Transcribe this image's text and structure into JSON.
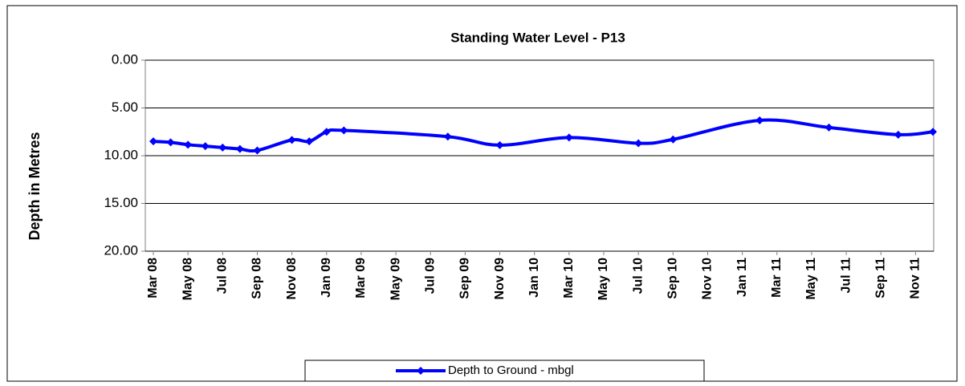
{
  "chart_data": {
    "type": "line",
    "title": "Standing Water Level - P13",
    "y_label": "Depth in Metres",
    "y_inverted": true,
    "grid": true,
    "legend": "bottom",
    "x": [
      "2008-03",
      "2008-04",
      "2008-05",
      "2008-06",
      "2008-07",
      "2008-08",
      "2008-09",
      "2008-11",
      "2008-12",
      "2009-01",
      "2009-02",
      "2009-08",
      "2009-11",
      "2010-03",
      "2010-07",
      "2010-09",
      "2011-02",
      "2011-06",
      "2011-10",
      "2011-12"
    ],
    "series": [
      {
        "name": "Depth to Ground - mbgl",
        "color": "#0000ff",
        "values": [
          8.5,
          8.6,
          8.85,
          9.0,
          9.15,
          9.3,
          9.45,
          8.35,
          8.5,
          7.5,
          7.35,
          8.0,
          8.9,
          8.1,
          8.7,
          8.3,
          6.3,
          7.05,
          7.8,
          7.5
        ]
      }
    ],
    "xlim": [
      "2008-03",
      "2011-12"
    ],
    "xticks": [
      {
        "value": "2008-03",
        "label": "Mar 08"
      },
      {
        "value": "2008-05",
        "label": "May 08"
      },
      {
        "value": "2008-07",
        "label": "Jul 08"
      },
      {
        "value": "2008-09",
        "label": "Sep 08"
      },
      {
        "value": "2008-11",
        "label": "Nov 08"
      },
      {
        "value": "2009-01",
        "label": "Jan 09"
      },
      {
        "value": "2009-03",
        "label": "Mar 09"
      },
      {
        "value": "2009-05",
        "label": "May 09"
      },
      {
        "value": "2009-07",
        "label": "Jul 09"
      },
      {
        "value": "2009-09",
        "label": "Sep 09"
      },
      {
        "value": "2009-11",
        "label": "Nov 09"
      },
      {
        "value": "2010-01",
        "label": "Jan 10"
      },
      {
        "value": "2010-03",
        "label": "Mar 10"
      },
      {
        "value": "2010-05",
        "label": "May 10"
      },
      {
        "value": "2010-07",
        "label": "Jul 10"
      },
      {
        "value": "2010-09",
        "label": "Sep 10"
      },
      {
        "value": "2010-11",
        "label": "Nov 10"
      },
      {
        "value": "2011-01",
        "label": "Jan 11"
      },
      {
        "value": "2011-03",
        "label": "Mar 11"
      },
      {
        "value": "2011-05",
        "label": "May 11"
      },
      {
        "value": "2011-07",
        "label": "Jul 11"
      },
      {
        "value": "2011-09",
        "label": "Sep 11"
      },
      {
        "value": "2011-11",
        "label": "Nov 11"
      }
    ],
    "ylim": [
      0,
      20
    ],
    "yticks": [
      {
        "value": 0,
        "label": "0.00"
      },
      {
        "value": 5,
        "label": "5.00"
      },
      {
        "value": 10,
        "label": "10.00"
      },
      {
        "value": 15,
        "label": "15.00"
      },
      {
        "value": 20,
        "label": "20.00"
      }
    ]
  }
}
